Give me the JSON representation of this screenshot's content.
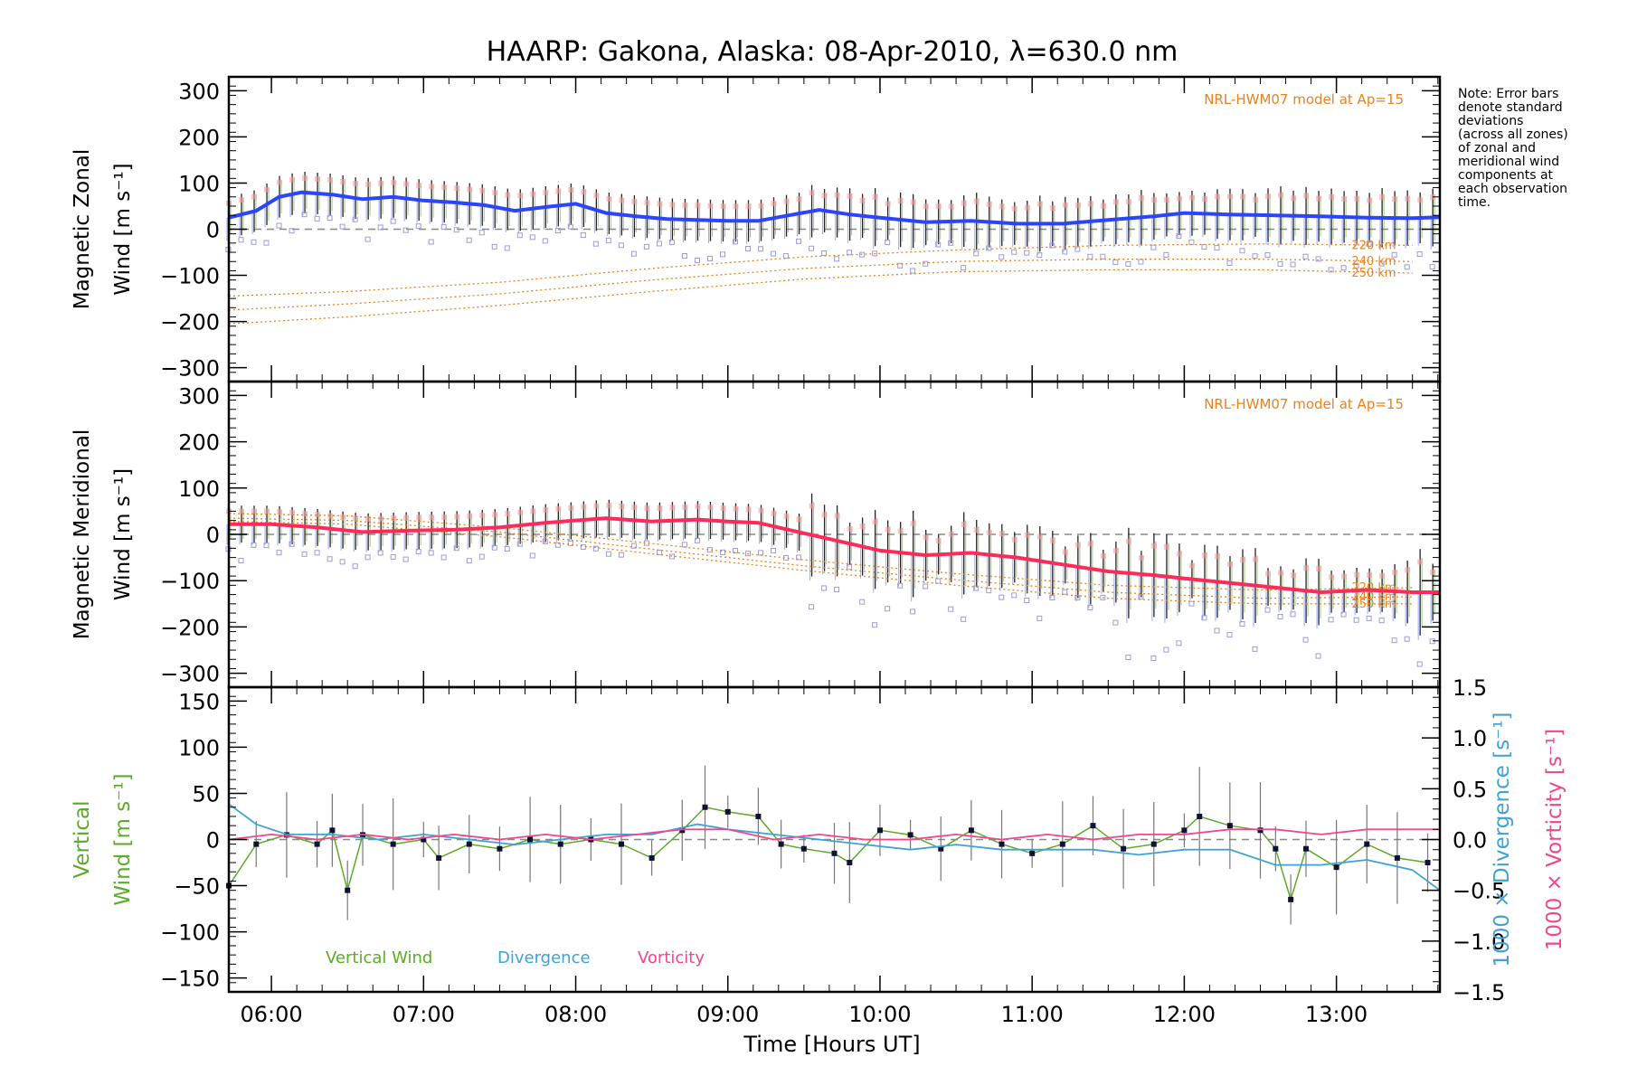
{
  "title": "HAARP: Gakona,  Alaska: 08-Apr-2010, λ=630.0 nm",
  "note": [
    "Note: Error bars",
    "denote standard",
    "deviations",
    "(across all zones)",
    "of zonal and",
    "meridional wind",
    "components at",
    "each observation",
    "time."
  ],
  "xlabel": "Time [Hours UT]",
  "xticks": [
    "06:00",
    "07:00",
    "08:00",
    "09:00",
    "10:00",
    "11:00",
    "12:00",
    "13:00"
  ],
  "colors": {
    "zonal": "#2a44ff",
    "meridional": "#ff2a5a",
    "model": "#e8821e",
    "vertical": "#5caa2a",
    "divergence": "#3fa2d4",
    "vorticity": "#f0468c",
    "scatter": "#9b9bdc"
  },
  "chart_data": [
    {
      "type": "line",
      "ylabel": [
        "Magnetic Zonal",
        "Wind [m s⁻¹]"
      ],
      "model_label": "NRL-HWM07 model at Ap=15",
      "model_altitudes": [
        "220 km",
        "240 km",
        "250 km"
      ],
      "xlim": [
        5.72,
        13.68
      ],
      "ylim": [
        -330,
        330
      ],
      "yticks": [
        300,
        200,
        100,
        0,
        -100,
        -200,
        -300
      ],
      "series": [
        {
          "values": [
            [
              5.72,
              25
            ],
            [
              5.9,
              40
            ],
            [
              6.05,
              70
            ],
            [
              6.2,
              80
            ],
            [
              6.4,
              75
            ],
            [
              6.6,
              65
            ],
            [
              6.8,
              70
            ],
            [
              7.0,
              62
            ],
            [
              7.2,
              58
            ],
            [
              7.4,
              52
            ],
            [
              7.6,
              40
            ],
            [
              7.8,
              48
            ],
            [
              8.0,
              55
            ],
            [
              8.2,
              35
            ],
            [
              8.4,
              28
            ],
            [
              8.6,
              22
            ],
            [
              8.8,
              20
            ],
            [
              9.0,
              18
            ],
            [
              9.2,
              18
            ],
            [
              9.4,
              30
            ],
            [
              9.6,
              42
            ],
            [
              9.8,
              32
            ],
            [
              10.0,
              25
            ],
            [
              10.3,
              15
            ],
            [
              10.6,
              18
            ],
            [
              10.9,
              12
            ],
            [
              11.2,
              12
            ],
            [
              11.5,
              20
            ],
            [
              11.8,
              28
            ],
            [
              12.0,
              35
            ],
            [
              12.3,
              32
            ],
            [
              12.6,
              30
            ],
            [
              12.9,
              28
            ],
            [
              13.2,
              25
            ],
            [
              13.5,
              24
            ],
            [
              13.68,
              26
            ]
          ]
        }
      ],
      "model_series": [
        {
          "values": [
            [
              5.72,
              -145
            ],
            [
              6.5,
              -135
            ],
            [
              7.5,
              -115
            ],
            [
              8.5,
              -85
            ],
            [
              9.5,
              -60
            ],
            [
              10.5,
              -45
            ],
            [
              11.5,
              -35
            ],
            [
              12.5,
              -32
            ],
            [
              13.5,
              -35
            ]
          ]
        },
        {
          "values": [
            [
              5.72,
              -175
            ],
            [
              6.5,
              -162
            ],
            [
              7.5,
              -140
            ],
            [
              8.5,
              -110
            ],
            [
              9.5,
              -85
            ],
            [
              10.5,
              -70
            ],
            [
              11.5,
              -65
            ],
            [
              12.5,
              -65
            ],
            [
              13.5,
              -70
            ]
          ]
        },
        {
          "values": [
            [
              5.72,
              -205
            ],
            [
              6.5,
              -190
            ],
            [
              7.5,
              -165
            ],
            [
              8.5,
              -135
            ],
            [
              9.5,
              -108
            ],
            [
              10.5,
              -92
            ],
            [
              11.5,
              -88
            ],
            [
              12.5,
              -88
            ],
            [
              13.5,
              -95
            ]
          ]
        }
      ]
    },
    {
      "type": "line",
      "ylabel": [
        "Magnetic Meridional",
        "Wind [m s⁻¹]"
      ],
      "model_label": "NRL-HWM07 model at Ap=15",
      "model_altitudes": [
        "220 km",
        "240 km",
        "250 km"
      ],
      "xlim": [
        5.72,
        13.68
      ],
      "ylim": [
        -330,
        330
      ],
      "yticks": [
        300,
        200,
        100,
        0,
        -100,
        -200,
        -300
      ],
      "series": [
        {
          "values": [
            [
              5.72,
              22
            ],
            [
              6.0,
              22
            ],
            [
              6.3,
              15
            ],
            [
              6.6,
              5
            ],
            [
              6.9,
              8
            ],
            [
              7.2,
              10
            ],
            [
              7.5,
              15
            ],
            [
              7.8,
              25
            ],
            [
              8.0,
              30
            ],
            [
              8.2,
              35
            ],
            [
              8.5,
              28
            ],
            [
              8.8,
              32
            ],
            [
              9.0,
              28
            ],
            [
              9.2,
              25
            ],
            [
              9.4,
              10
            ],
            [
              9.6,
              -5
            ],
            [
              9.8,
              -20
            ],
            [
              10.0,
              -35
            ],
            [
              10.3,
              -45
            ],
            [
              10.6,
              -40
            ],
            [
              10.9,
              -50
            ],
            [
              11.2,
              -65
            ],
            [
              11.5,
              -80
            ],
            [
              11.8,
              -88
            ],
            [
              12.0,
              -95
            ],
            [
              12.3,
              -105
            ],
            [
              12.6,
              -115
            ],
            [
              12.9,
              -125
            ],
            [
              13.2,
              -120
            ],
            [
              13.5,
              -125
            ],
            [
              13.68,
              -125
            ]
          ]
        }
      ],
      "model_series": [
        {
          "values": [
            [
              5.72,
              45
            ],
            [
              6.5,
              40
            ],
            [
              7.5,
              15
            ],
            [
              8.5,
              -20
            ],
            [
              9.5,
              -55
            ],
            [
              10.5,
              -85
            ],
            [
              11.5,
              -110
            ],
            [
              12.5,
              -120
            ],
            [
              13.5,
              -115
            ]
          ]
        },
        {
          "values": [
            [
              5.72,
              35
            ],
            [
              6.5,
              30
            ],
            [
              7.5,
              5
            ],
            [
              8.5,
              -32
            ],
            [
              9.5,
              -68
            ],
            [
              10.5,
              -98
            ],
            [
              11.5,
              -125
            ],
            [
              12.5,
              -138
            ],
            [
              13.5,
              -135
            ]
          ]
        },
        {
          "values": [
            [
              5.72,
              28
            ],
            [
              6.5,
              22
            ],
            [
              7.5,
              -5
            ],
            [
              8.5,
              -42
            ],
            [
              9.5,
              -78
            ],
            [
              10.5,
              -110
            ],
            [
              11.5,
              -138
            ],
            [
              12.5,
              -150
            ],
            [
              13.5,
              -150
            ]
          ]
        }
      ]
    },
    {
      "type": "line",
      "ylabel": [
        "Vertical",
        "Wind [m s⁻¹]"
      ],
      "ylabel_right": [
        {
          "text": "1000 × Divergence [s⁻¹]"
        },
        {
          "text": "1000 × Vorticity [s⁻¹]"
        }
      ],
      "xlim": [
        5.72,
        13.68
      ],
      "ylim": [
        -165,
        165
      ],
      "yticks": [
        150,
        100,
        50,
        0,
        -50,
        -100,
        -150
      ],
      "yticks_right": [
        "1.5",
        "1.0",
        "0.5",
        "0.0",
        "−0.5",
        "−1.0",
        "−1.5"
      ],
      "legend": [
        "Vertical Wind",
        "Divergence",
        "Vorticity"
      ],
      "series": [
        {
          "name": "Vertical Wind",
          "values": [
            [
              5.72,
              -50
            ],
            [
              5.9,
              -5
            ],
            [
              6.1,
              5
            ],
            [
              6.3,
              -5
            ],
            [
              6.4,
              10
            ],
            [
              6.5,
              -55
            ],
            [
              6.6,
              5
            ],
            [
              6.8,
              -5
            ],
            [
              7.0,
              0
            ],
            [
              7.1,
              -20
            ],
            [
              7.3,
              -5
            ],
            [
              7.5,
              -10
            ],
            [
              7.7,
              0
            ],
            [
              7.9,
              -5
            ],
            [
              8.1,
              0
            ],
            [
              8.3,
              -5
            ],
            [
              8.5,
              -20
            ],
            [
              8.7,
              10
            ],
            [
              8.85,
              35
            ],
            [
              9.0,
              30
            ],
            [
              9.2,
              25
            ],
            [
              9.35,
              -5
            ],
            [
              9.5,
              -10
            ],
            [
              9.7,
              -15
            ],
            [
              9.8,
              -25
            ],
            [
              10.0,
              10
            ],
            [
              10.2,
              5
            ],
            [
              10.4,
              -10
            ],
            [
              10.6,
              10
            ],
            [
              10.8,
              -5
            ],
            [
              11.0,
              -15
            ],
            [
              11.2,
              -5
            ],
            [
              11.4,
              15
            ],
            [
              11.6,
              -10
            ],
            [
              11.8,
              -5
            ],
            [
              12.0,
              10
            ],
            [
              12.1,
              25
            ],
            [
              12.3,
              15
            ],
            [
              12.5,
              10
            ],
            [
              12.6,
              -10
            ],
            [
              12.7,
              -65
            ],
            [
              12.8,
              -10
            ],
            [
              13.0,
              -30
            ],
            [
              13.2,
              -5
            ],
            [
              13.4,
              -20
            ],
            [
              13.6,
              -25
            ]
          ]
        },
        {
          "name": "Divergence",
          "values": [
            [
              5.72,
              0.35
            ],
            [
              5.9,
              0.15
            ],
            [
              6.1,
              0.05
            ],
            [
              6.4,
              0.05
            ],
            [
              6.7,
              0.0
            ],
            [
              7.0,
              0.05
            ],
            [
              7.3,
              0.0
            ],
            [
              7.6,
              -0.05
            ],
            [
              7.9,
              0.0
            ],
            [
              8.2,
              0.05
            ],
            [
              8.5,
              0.05
            ],
            [
              8.8,
              0.15
            ],
            [
              9.0,
              0.1
            ],
            [
              9.3,
              0.05
            ],
            [
              9.6,
              0.0
            ],
            [
              9.9,
              -0.05
            ],
            [
              10.2,
              -0.1
            ],
            [
              10.5,
              -0.05
            ],
            [
              10.8,
              -0.1
            ],
            [
              11.1,
              -0.1
            ],
            [
              11.4,
              -0.1
            ],
            [
              11.7,
              -0.15
            ],
            [
              12.0,
              -0.1
            ],
            [
              12.3,
              -0.1
            ],
            [
              12.6,
              -0.25
            ],
            [
              12.9,
              -0.25
            ],
            [
              13.2,
              -0.2
            ],
            [
              13.5,
              -0.3
            ],
            [
              13.68,
              -0.5
            ]
          ]
        },
        {
          "name": "Vorticity",
          "values": [
            [
              5.72,
              0.0
            ],
            [
              6.0,
              0.05
            ],
            [
              6.3,
              0.0
            ],
            [
              6.6,
              0.05
            ],
            [
              6.9,
              0.0
            ],
            [
              7.2,
              0.05
            ],
            [
              7.5,
              0.0
            ],
            [
              7.8,
              0.05
            ],
            [
              8.1,
              0.0
            ],
            [
              8.4,
              0.05
            ],
            [
              8.7,
              0.1
            ],
            [
              9.0,
              0.1
            ],
            [
              9.3,
              0.0
            ],
            [
              9.6,
              0.05
            ],
            [
              9.9,
              0.0
            ],
            [
              10.2,
              0.0
            ],
            [
              10.5,
              0.05
            ],
            [
              10.8,
              0.0
            ],
            [
              11.1,
              0.05
            ],
            [
              11.4,
              0.0
            ],
            [
              11.7,
              0.05
            ],
            [
              12.0,
              0.05
            ],
            [
              12.3,
              0.1
            ],
            [
              12.6,
              0.1
            ],
            [
              12.9,
              0.05
            ],
            [
              13.2,
              0.1
            ],
            [
              13.5,
              0.1
            ],
            [
              13.68,
              0.1
            ]
          ]
        }
      ]
    }
  ]
}
